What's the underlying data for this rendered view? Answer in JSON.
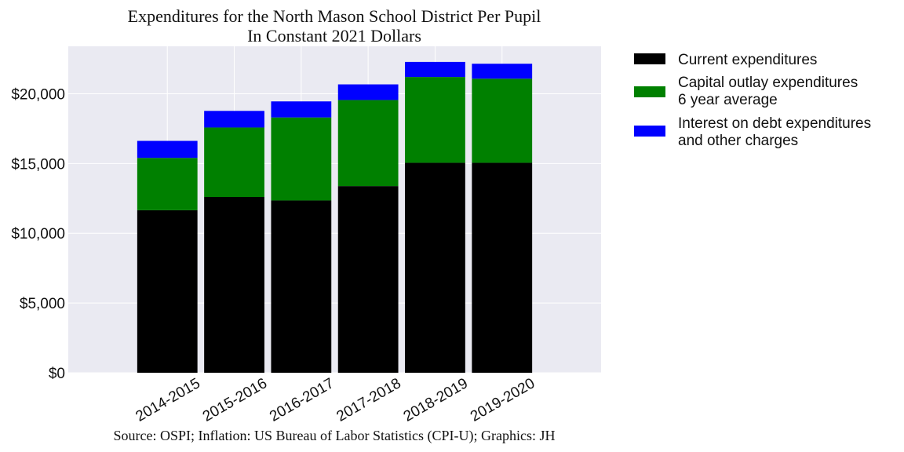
{
  "chart_data": {
    "type": "bar",
    "stacked": true,
    "title": "Expenditures for the North Mason School District Per Pupil",
    "subtitle": "In Constant 2021 Dollars",
    "source": "Source: OSPI; Inflation: US Bureau of Labor Statistics (CPI-U); Graphics: JH",
    "xlabel": "",
    "ylabel": "",
    "categories": [
      "2014-2015",
      "2015-2016",
      "2016-2017",
      "2017-2018",
      "2018-2019",
      "2019-2020"
    ],
    "series": [
      {
        "name_lines": [
          "Current expenditures"
        ],
        "color": "#000000",
        "values": [
          11650,
          12600,
          12350,
          13380,
          15050,
          15050
        ]
      },
      {
        "name_lines": [
          "Capital outlay expenditures",
          "6 year average"
        ],
        "color": "#008000",
        "values": [
          3750,
          4980,
          5950,
          6170,
          6150,
          6030
        ]
      },
      {
        "name_lines": [
          "Interest on debt expenditures",
          "and other charges"
        ],
        "color": "#0000ff",
        "values": [
          1220,
          1190,
          1150,
          1120,
          1080,
          1070
        ]
      }
    ],
    "ylim": [
      0,
      23400
    ],
    "yticks": [
      0,
      5000,
      10000,
      15000,
      20000
    ],
    "ytick_labels": [
      "$0",
      "$5,000",
      "$10,000",
      "$15,000",
      "$20,000"
    ],
    "grid": true,
    "legend_position": "outside-right"
  }
}
